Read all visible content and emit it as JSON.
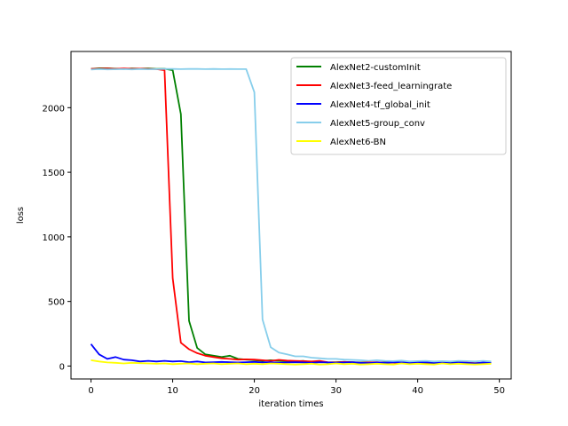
{
  "chart_data": {
    "type": "line",
    "xlabel": "iteration times",
    "ylabel": "loss",
    "xlim": [
      -2.45,
      51.45
    ],
    "ylim": [
      -100,
      2435
    ],
    "xticks": [
      0,
      10,
      20,
      30,
      40,
      50
    ],
    "yticks": [
      0,
      500,
      1000,
      1500,
      2000
    ],
    "legend_position": "top-right",
    "grid": false,
    "series": [
      {
        "name": "AlexNet2-customInit",
        "color": "#008000",
        "x": [
          0,
          1,
          2,
          3,
          4,
          5,
          6,
          7,
          8,
          9,
          10,
          11,
          12,
          13,
          14,
          15,
          16,
          17,
          18,
          19,
          20,
          21,
          22,
          23,
          24,
          25,
          26,
          27,
          28,
          29,
          30,
          31,
          32,
          33,
          34,
          35,
          36,
          37,
          38,
          39,
          40,
          41,
          42,
          43,
          44,
          45,
          46,
          47,
          48,
          49
        ],
        "y": [
          2300,
          2305,
          2305,
          2302,
          2300,
          2304,
          2302,
          2303,
          2300,
          2301,
          2290,
          1950,
          350,
          140,
          90,
          80,
          70,
          80,
          55,
          50,
          45,
          40,
          45,
          40,
          38,
          35,
          40,
          30,
          35,
          28,
          30,
          32,
          30,
          28,
          30,
          25,
          30,
          28,
          25,
          30,
          28,
          25,
          22,
          25,
          30,
          28,
          25,
          22,
          20,
          25
        ]
      },
      {
        "name": "AlexNet3-feed_learningrate",
        "color": "#ff0000",
        "x": [
          0,
          1,
          2,
          3,
          4,
          5,
          6,
          7,
          8,
          9,
          10,
          11,
          12,
          13,
          14,
          15,
          16,
          17,
          18,
          19,
          20,
          21,
          22,
          23,
          24,
          25,
          26,
          27,
          28,
          29,
          30,
          31,
          32,
          33,
          34,
          35,
          36,
          37,
          38,
          39,
          40,
          41,
          42,
          43,
          44,
          45,
          46,
          47,
          48,
          49
        ],
        "y": [
          2300,
          2302,
          2304,
          2300,
          2303,
          2301,
          2302,
          2300,
          2298,
          2290,
          680,
          180,
          130,
          100,
          80,
          70,
          60,
          55,
          50,
          52,
          50,
          45,
          40,
          48,
          42,
          40,
          38,
          35,
          40,
          30,
          28,
          32,
          30,
          25,
          28,
          30,
          25,
          28,
          22,
          25,
          30,
          28,
          25,
          22,
          20,
          25,
          28,
          22,
          25,
          20
        ]
      },
      {
        "name": "AlexNet4-tf_global_init",
        "color": "#0000ff",
        "x": [
          0,
          1,
          2,
          3,
          4,
          5,
          6,
          7,
          8,
          9,
          10,
          11,
          12,
          13,
          14,
          15,
          16,
          17,
          18,
          19,
          20,
          21,
          22,
          23,
          24,
          25,
          26,
          27,
          28,
          29,
          30,
          31,
          32,
          33,
          34,
          35,
          36,
          37,
          38,
          39,
          40,
          41,
          42,
          43,
          44,
          45,
          46,
          47,
          48,
          49
        ],
        "y": [
          170,
          90,
          55,
          70,
          50,
          45,
          35,
          40,
          35,
          40,
          35,
          38,
          30,
          35,
          28,
          30,
          32,
          30,
          28,
          30,
          32,
          28,
          30,
          25,
          28,
          30,
          28,
          25,
          30,
          28,
          25,
          28,
          30,
          25,
          22,
          28,
          25,
          30,
          28,
          25,
          28,
          30,
          25,
          28,
          22,
          28,
          25,
          20,
          28,
          25
        ]
      },
      {
        "name": "AlexNet5-group_conv",
        "color": "#87ceeb",
        "x": [
          0,
          1,
          2,
          3,
          4,
          5,
          6,
          7,
          8,
          9,
          10,
          11,
          12,
          13,
          14,
          15,
          16,
          17,
          18,
          19,
          20,
          21,
          22,
          23,
          24,
          25,
          26,
          27,
          28,
          29,
          30,
          31,
          32,
          33,
          34,
          35,
          36,
          37,
          38,
          39,
          40,
          41,
          42,
          43,
          44,
          45,
          46,
          47,
          48,
          49
        ],
        "y": [
          2295,
          2298,
          2296,
          2297,
          2298,
          2296,
          2298,
          2297,
          2298,
          2300,
          2300,
          2298,
          2300,
          2300,
          2298,
          2300,
          2298,
          2299,
          2298,
          2298,
          2120,
          360,
          145,
          105,
          90,
          75,
          75,
          65,
          60,
          55,
          55,
          50,
          48,
          45,
          40,
          45,
          40,
          38,
          42,
          35,
          38,
          40,
          35,
          38,
          35,
          40,
          38,
          35,
          40,
          35
        ]
      },
      {
        "name": "AlexNet6-BN",
        "color": "#ffff00",
        "x": [
          0,
          1,
          2,
          3,
          4,
          5,
          6,
          7,
          8,
          9,
          10,
          11,
          12,
          13,
          14,
          15,
          16,
          17,
          18,
          19,
          20,
          21,
          22,
          23,
          24,
          25,
          26,
          27,
          28,
          29,
          30,
          31,
          32,
          33,
          34,
          35,
          36,
          37,
          38,
          39,
          40,
          41,
          42,
          43,
          44,
          45,
          46,
          47,
          48,
          49
        ],
        "y": [
          45,
          35,
          28,
          25,
          20,
          25,
          22,
          20,
          18,
          20,
          15,
          18,
          20,
          15,
          18,
          20,
          15,
          18,
          20,
          15,
          18,
          15,
          20,
          18,
          15,
          12,
          15,
          18,
          12,
          15,
          20,
          15,
          18,
          12,
          15,
          18,
          15,
          12,
          20,
          15,
          18,
          15,
          12,
          20,
          15,
          18,
          15,
          12,
          15,
          18
        ]
      }
    ]
  }
}
